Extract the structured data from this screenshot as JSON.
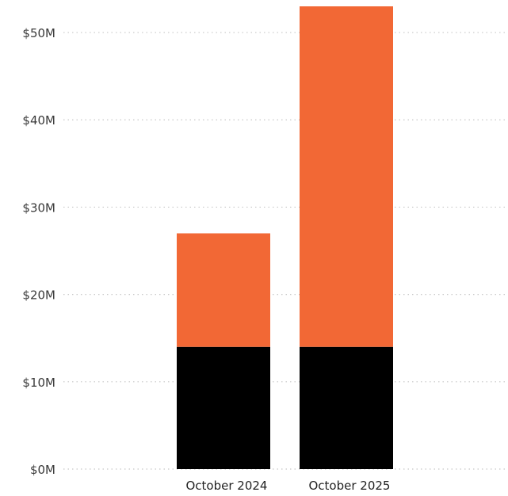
{
  "chart_data": {
    "type": "bar",
    "stacked": true,
    "title": "",
    "xlabel": "",
    "ylabel": "",
    "categories": [
      "October 2024",
      "October 2025"
    ],
    "series": [
      {
        "values": [
          14,
          14
        ],
        "color": "#000000"
      },
      {
        "values": [
          13,
          39
        ],
        "color": "#f26835"
      }
    ],
    "ylim": [
      0,
      53
    ],
    "yticks": [
      0,
      10,
      20,
      30,
      40,
      50
    ],
    "ytick_labels": [
      "$0M",
      "$10M",
      "$20M",
      "$30M",
      "$40M",
      "$50M"
    ],
    "grid": true,
    "legend": "none"
  }
}
